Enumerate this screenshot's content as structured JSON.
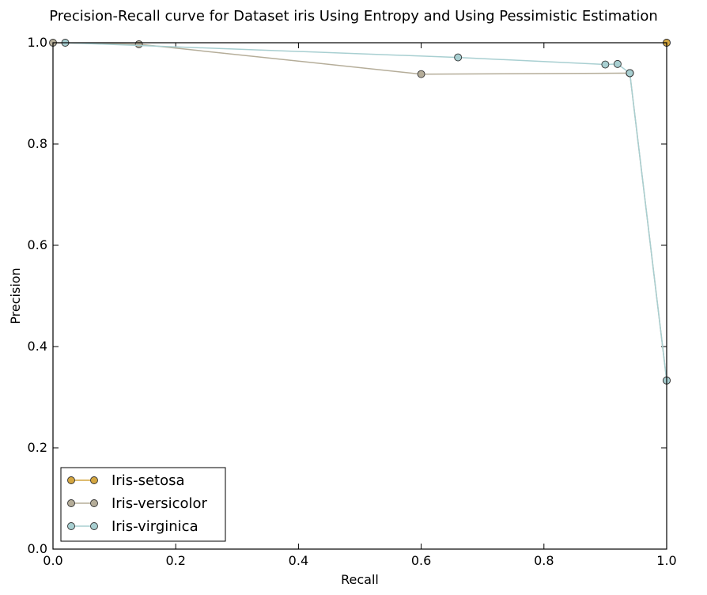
{
  "chart_data": {
    "type": "line",
    "title": "Precision-Recall curve for Dataset iris Using Entropy and Using Pessimistic Estimation",
    "xlabel": "Recall",
    "ylabel": "Precision",
    "xlim": [
      0.0,
      1.0
    ],
    "ylim": [
      0.0,
      1.0
    ],
    "xticks": [
      "0.0",
      "0.2",
      "0.4",
      "0.6",
      "0.8",
      "1.0"
    ],
    "yticks": [
      "0.0",
      "0.2",
      "0.4",
      "0.6",
      "0.8",
      "1.0"
    ],
    "grid": false,
    "legend_position": "lower-left",
    "series": [
      {
        "name": "Iris-setosa",
        "color": "#d4a640",
        "x": [
          1.0,
          1.0
        ],
        "y": [
          1.0,
          1.0
        ]
      },
      {
        "name": "Iris-versicolor",
        "color": "#b5ad99",
        "x": [
          0.0,
          0.14,
          0.6,
          0.94,
          0.94,
          0.94,
          1.0
        ],
        "y": [
          1.0,
          0.997,
          0.938,
          0.94,
          0.94,
          0.94,
          0.333
        ]
      },
      {
        "name": "Iris-virginica",
        "color": "#a8cfd1",
        "x": [
          0.02,
          0.66,
          0.9,
          0.92,
          0.94,
          0.94,
          0.94,
          1.0
        ],
        "y": [
          1.0,
          0.971,
          0.957,
          0.958,
          0.94,
          0.94,
          0.94,
          0.333
        ]
      }
    ]
  }
}
